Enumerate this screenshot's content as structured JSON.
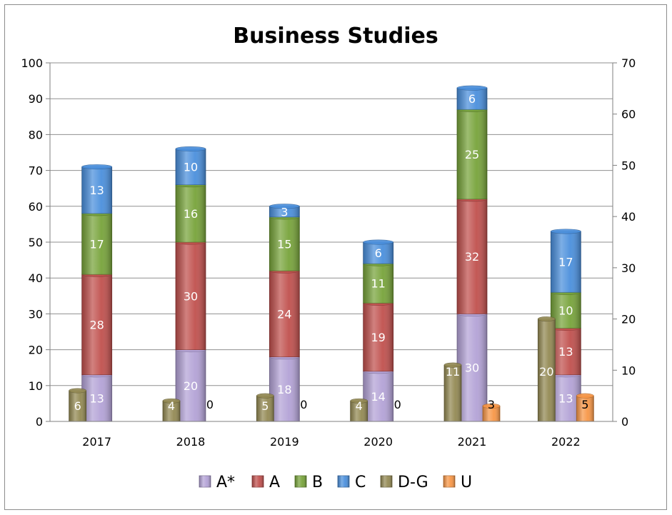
{
  "chart_data": {
    "type": "bar",
    "stacked": true,
    "title": "Business Studies",
    "categories": [
      "2017",
      "2018",
      "2019",
      "2020",
      "2021",
      "2022"
    ],
    "primary_axis": {
      "side": "left",
      "ylim": [
        0,
        100
      ],
      "ticks": [
        0,
        10,
        20,
        30,
        40,
        50,
        60,
        70,
        80,
        90,
        100
      ]
    },
    "secondary_axis": {
      "side": "right",
      "ylim": [
        0,
        70
      ],
      "ticks": [
        0,
        10,
        20,
        30,
        40,
        50,
        60,
        70
      ]
    },
    "stacked_series": [
      {
        "name": "A*",
        "values": [
          13,
          20,
          18,
          14,
          30,
          13
        ],
        "color": "#b3a2d6"
      },
      {
        "name": "A",
        "values": [
          28,
          30,
          24,
          19,
          32,
          13
        ],
        "color": "#c0504d"
      },
      {
        "name": "B",
        "values": [
          17,
          16,
          15,
          11,
          25,
          10
        ],
        "color": "#77a33a"
      },
      {
        "name": "C",
        "values": [
          13,
          10,
          3,
          6,
          6,
          17
        ],
        "color": "#4a8fdc"
      }
    ],
    "side_series": [
      {
        "name": "D-G",
        "values": [
          6,
          4,
          5,
          4,
          11,
          20
        ],
        "color": "#938953",
        "axis": "secondary",
        "offset": "left"
      },
      {
        "name": "U",
        "values": [
          null,
          0,
          0,
          0,
          3,
          5
        ],
        "color": "#f79646",
        "axis": "secondary",
        "offset": "right"
      }
    ],
    "legend": {
      "position": "bottom",
      "entries": [
        "A*",
        "A",
        "B",
        "C",
        "D-G",
        "U"
      ],
      "colors": [
        "#b3a2d6",
        "#c0504d",
        "#77a33a",
        "#4a8fdc",
        "#938953",
        "#f79646"
      ]
    },
    "grid": true
  }
}
